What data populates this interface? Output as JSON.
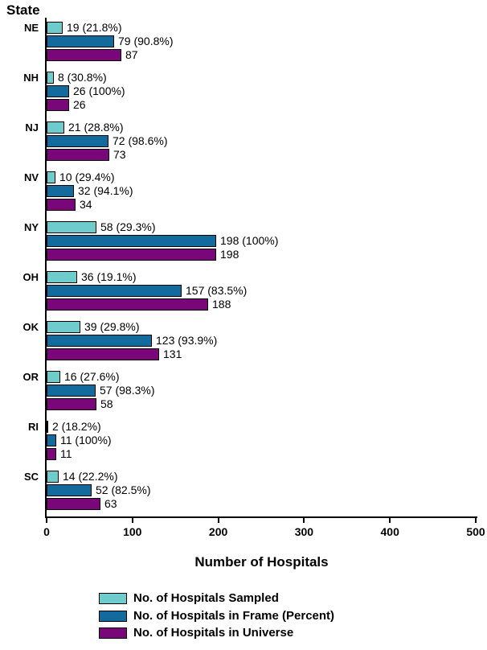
{
  "chart_data": {
    "type": "bar",
    "orientation": "horizontal",
    "title": "State",
    "xlabel": "Number of Hospitals",
    "xlim": [
      0,
      500
    ],
    "xticks": [
      0,
      100,
      200,
      300,
      400,
      500
    ],
    "grid": false,
    "legend_position": "bottom-left",
    "categories": [
      "NE",
      "NH",
      "NJ",
      "NV",
      "NY",
      "OH",
      "OK",
      "OR",
      "RI",
      "SC"
    ],
    "series": [
      {
        "name": "No. of Hospitals Sampled",
        "color": "#6FCCCC",
        "values": [
          19,
          8,
          21,
          10,
          58,
          36,
          39,
          16,
          2,
          14
        ],
        "bar_labels": [
          "19 (21.8%)",
          "8 (30.8%)",
          "21 (28.8%)",
          "10 (29.4%)",
          "58 (29.3%)",
          "36 (19.1%)",
          "39 (29.8%)",
          "16 (27.6%)",
          "2 (18.2%)",
          "14 (22.2%)"
        ]
      },
      {
        "name": "No. of Hospitals in Frame (Percent)",
        "color": "#136B9D",
        "values": [
          79,
          26,
          72,
          32,
          198,
          157,
          123,
          57,
          11,
          52
        ],
        "bar_labels": [
          "79 (90.8%)",
          "26 (100%)",
          "72 (98.6%)",
          "32 (94.1%)",
          "198 (100%)",
          "157 (83.5%)",
          "123 (93.9%)",
          "57 (98.3%)",
          "11 (100%)",
          "52 (82.5%)"
        ]
      },
      {
        "name": "No. of Hospitals in Universe",
        "color": "#7A077A",
        "values": [
          87,
          26,
          73,
          34,
          198,
          188,
          131,
          58,
          11,
          63
        ],
        "bar_labels": [
          "87",
          "26",
          "73",
          "34",
          "198",
          "188",
          "131",
          "58",
          "11",
          "63"
        ]
      }
    ]
  },
  "legend": {
    "items": [
      {
        "label": "No. of Hospitals Sampled",
        "color": "#6FCCCC"
      },
      {
        "label": "No. of Hospitals in Frame (Percent)",
        "color": "#136B9D"
      },
      {
        "label": "No. of Hospitals in Universe",
        "color": "#7A077A"
      }
    ]
  }
}
